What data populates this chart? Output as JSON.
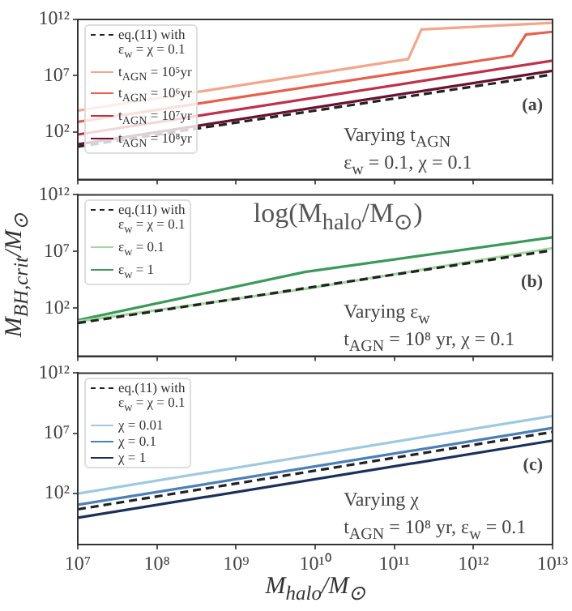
{
  "chart_data": [
    {
      "type": "line",
      "log": "xy",
      "grid": false,
      "legend": "top left",
      "tick_labels": "y",
      "xlim": [
        10000000.0,
        10000000000000.0
      ],
      "xticks": [
        {
          "value": 10000000.0,
          "label": null
        },
        {
          "value": 100000000.0,
          "label": null
        },
        {
          "value": 1000000000.0,
          "label": null
        },
        {
          "value": 10000000000.0,
          "label": null
        },
        {
          "value": 100000000000.0,
          "label": null
        },
        {
          "value": 1000000000000.0,
          "label": null
        },
        {
          "value": 10000000000000.0,
          "label": null
        }
      ],
      "ylim": [
        0.006,
        1000000000000.0
      ],
      "yticks": [
        {
          "value": 100,
          "label": "10²"
        },
        {
          "value": 10000000.0,
          "label": "10⁷"
        },
        {
          "value": 1000000000000.0,
          "label": "10¹²"
        }
      ],
      "annotations": [
        "(a)",
        "Varying t$_{AGN}$",
        "ε$_{w}$ = 0.1, χ = 0.1"
      ],
      "series": [
        {
          "name": "eq.(11) with\nε$_{w}$ = χ = 0.1",
          "color": "#222222",
          "line_style": "dashed",
          "x": [
            10000000.0,
            10000000000000.0
          ],
          "values": [
            5,
            13000000.0
          ]
        },
        {
          "name": "t$_{AGN}$ = 10⁵yr",
          "color": "#f4a58a",
          "line_style": "solid",
          "x": [
            10000000.0,
            150000000000.0,
            220000000000.0,
            10000000000000.0
          ],
          "values": [
            8000,
            300000000.0,
            130000000000.0,
            500000000000.0
          ]
        },
        {
          "name": "t$_{AGN}$ = 10⁶yr",
          "color": "#e8604a",
          "line_style": "solid",
          "x": [
            10000000.0,
            3100000000000.0,
            4600000000000.0,
            10000000000000.0
          ],
          "values": [
            800,
            600000000.0,
            45000000000.0,
            80000000000.0
          ]
        },
        {
          "name": "t$_{AGN}$ = 10⁷yr",
          "color": "#c0304a",
          "line_style": "solid",
          "x": [
            10000000.0,
            10000000000000.0
          ],
          "values": [
            60,
            220000000.0
          ]
        },
        {
          "name": "t$_{AGN}$ = 10⁸yr",
          "color": "#6b1030",
          "line_style": "solid",
          "x": [
            10000000.0,
            10000000000000.0
          ],
          "values": [
            8,
            28000000.0
          ]
        }
      ]
    },
    {
      "type": "line",
      "log": "xy",
      "grid": false,
      "legend": "top left",
      "tick_labels": "y",
      "ylabel": "M$_{BH,crit}$/M$_{⊙}$",
      "xlim": [
        10000000.0,
        10000000000000.0
      ],
      "xticks": [
        {
          "value": 10000000.0,
          "label": null
        },
        {
          "value": 100000000.0,
          "label": null
        },
        {
          "value": 1000000000.0,
          "label": null
        },
        {
          "value": 10000000000.0,
          "label": null
        },
        {
          "value": 100000000000.0,
          "label": null
        },
        {
          "value": 1000000000000.0,
          "label": null
        },
        {
          "value": 10000000000000.0,
          "label": null
        }
      ],
      "ylim": [
        0.006,
        1000000000000.0
      ],
      "yticks": [
        {
          "value": 100,
          "label": "10²"
        },
        {
          "value": 10000000.0,
          "label": "10⁷"
        },
        {
          "value": 1000000000000.0,
          "label": "10¹²"
        }
      ],
      "annotations": [
        "(b)",
        "log(M$_{halo}$/M$_{⊙}$)",
        "Varying ε$_{w}$",
        "t$_{AGN}$ = 10⁸ yr, χ = 0.1"
      ],
      "series": [
        {
          "name": "eq.(11) with\nε$_{w}$ = χ = 0.1",
          "color": "#222222",
          "line_style": "dashed",
          "x": [
            10000000.0,
            10000000000000.0
          ],
          "values": [
            5,
            13000000.0
          ]
        },
        {
          "name": "ε$_{w}$ = 0.1",
          "color": "#a1d99b",
          "line_style": "solid",
          "x": [
            10000000.0,
            7400000000.0,
            10000000000000.0
          ],
          "values": [
            7,
            5000,
            20000000.0
          ]
        },
        {
          "name": "ε$_{w}$ = 1",
          "color": "#3a9a5a",
          "line_style": "solid",
          "x": [
            10000000.0,
            7400000000.0,
            10000000000000.0
          ],
          "values": [
            9,
            160000,
            180000000.0
          ]
        }
      ]
    },
    {
      "type": "line",
      "log": "xy",
      "grid": false,
      "legend": "top left",
      "xlabel": "M$_{halo}$/M$_{⊙}$",
      "xlim": [
        10000000.0,
        10000000000000.0
      ],
      "xticks": [
        {
          "value": 10000000.0,
          "label": "10⁷"
        },
        {
          "value": 100000000.0,
          "label": "10⁸"
        },
        {
          "value": 1000000000.0,
          "label": "10⁹"
        },
        {
          "value": 10000000000.0,
          "label": "10¹⁰"
        },
        {
          "value": 100000000000.0,
          "label": "10¹¹"
        },
        {
          "value": 1000000000000.0,
          "label": "10¹²"
        },
        {
          "value": 10000000000000.0,
          "label": "10¹³"
        }
      ],
      "ylim": [
        0.006,
        1000000000000.0
      ],
      "yticks": [
        {
          "value": 100,
          "label": "10²"
        },
        {
          "value": 10000000.0,
          "label": "10⁷"
        },
        {
          "value": 1000000000000.0,
          "label": "10¹²"
        }
      ],
      "annotations": [
        "(c)",
        "Varying χ",
        "t$_{AGN}$ = 10⁸ yr, ε$_{w}$ = 0.1"
      ],
      "series": [
        {
          "name": "eq.(11) with\nε$_{w}$ = χ = 0.1",
          "color": "#222222",
          "line_style": "dashed",
          "x": [
            10000000.0,
            10000000000000.0
          ],
          "values": [
            5,
            13000000.0
          ]
        },
        {
          "name": "χ = 0.01",
          "color": "#9ecae1",
          "line_style": "solid",
          "x": [
            10000000.0,
            10000000000000.0
          ],
          "values": [
            100,
            280000000.0
          ]
        },
        {
          "name": "χ = 0.1",
          "color": "#4a80b8",
          "line_style": "solid",
          "x": [
            10000000.0,
            10000000000000.0
          ],
          "values": [
            12,
            28000000.0
          ]
        },
        {
          "name": "χ = 1",
          "color": "#1a2f5a",
          "line_style": "solid",
          "x": [
            10000000.0,
            10000000000000.0
          ],
          "values": [
            1,
            2500000.0
          ]
        }
      ]
    }
  ]
}
